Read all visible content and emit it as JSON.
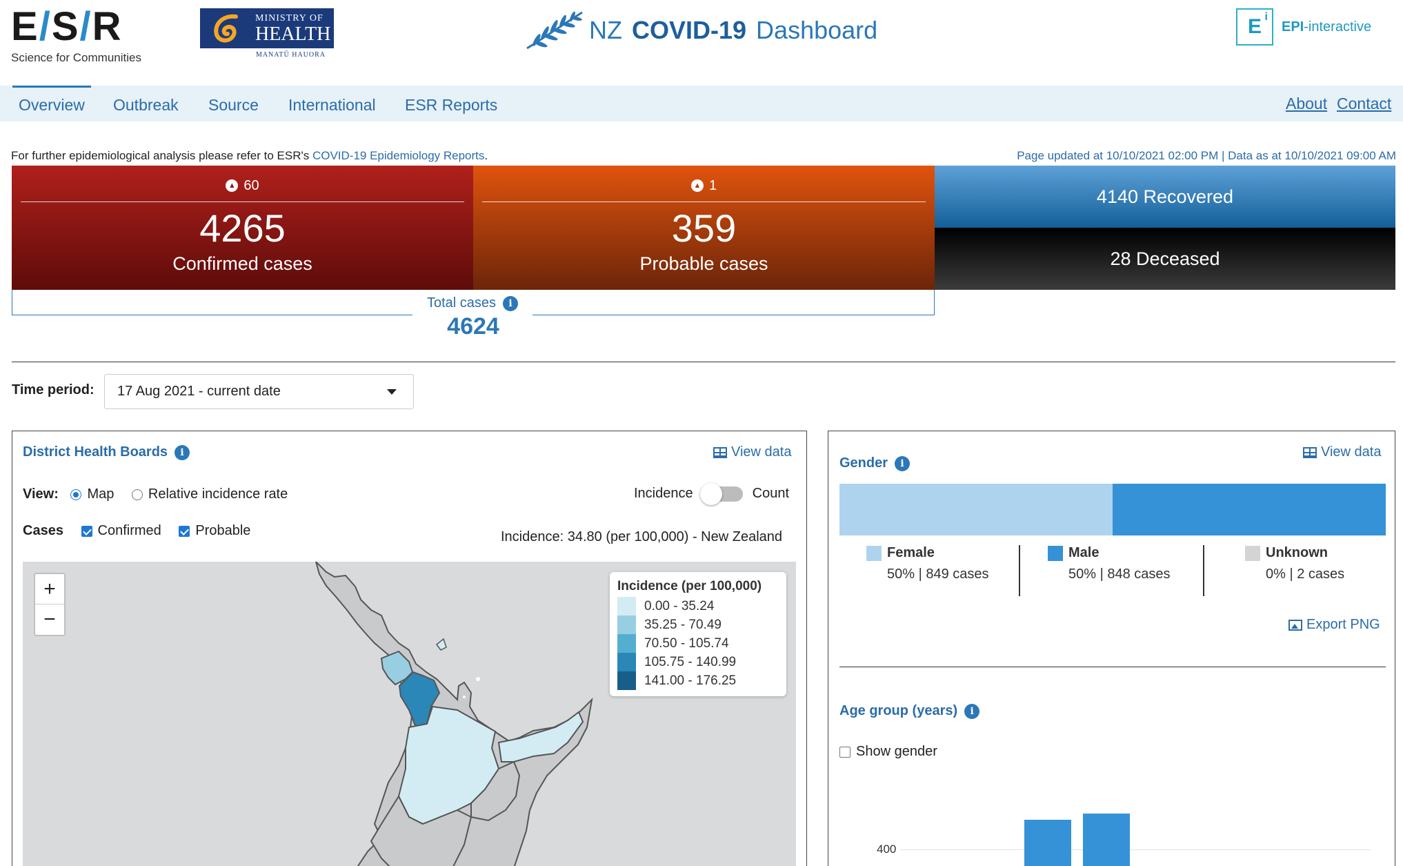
{
  "header": {
    "esr_logo_text": "E/S/R",
    "esr_tagline": "Science for Communities",
    "moh_line1": "MINISTRY OF",
    "moh_line2": "HEALTH",
    "moh_line3": "MANATŪ HAUORA",
    "title_nz": "NZ",
    "title_covid": "COVID-19",
    "title_dashboard": "Dashboard",
    "epi_letter": "E",
    "epi_sup": "i",
    "epi_bold": "EPI",
    "epi_rest": "-interactive"
  },
  "nav": {
    "items": [
      {
        "label": "Overview",
        "active": true
      },
      {
        "label": "Outbreak",
        "active": false
      },
      {
        "label": "Source",
        "active": false
      },
      {
        "label": "International",
        "active": false
      },
      {
        "label": "ESR Reports",
        "active": false
      }
    ],
    "right": [
      {
        "label": "About"
      },
      {
        "label": "Contact"
      }
    ]
  },
  "info": {
    "prefix": "For further epidemiological analysis please refer to ESR's ",
    "link": "COVID-19 Epidemiology Reports",
    "suffix": ".",
    "updated": "Page updated at 10/10/2021 02:00 PM | Data as at 10/10/2021 09:00 AM"
  },
  "stats": {
    "confirmed": {
      "delta": "60",
      "value": "4265",
      "label": "Confirmed cases"
    },
    "probable": {
      "delta": "1",
      "value": "359",
      "label": "Probable cases"
    },
    "recovered": "4140 Recovered",
    "deceased": "28 Deceased",
    "total_label": "Total cases",
    "total_value": "4624"
  },
  "time_period": {
    "label": "Time period:",
    "value": "17 Aug 2021 - current date"
  },
  "dhb": {
    "title": "District Health Boards",
    "view_data": "View data",
    "view_label": "View:",
    "opt_map": "Map",
    "opt_rel": "Relative incidence rate",
    "toggle_left": "Incidence",
    "toggle_right": "Count",
    "cases_label": "Cases",
    "cb_confirmed": "Confirmed",
    "cb_probable": "Probable",
    "incidence_text": "Incidence: 34.80 (per 100,000) - New Zealand",
    "zoom_in": "+",
    "zoom_out": "−",
    "legend_title": "Incidence (per 100,000)",
    "legend": [
      {
        "label": "0.00 - 35.24",
        "color": "#d3ecf4"
      },
      {
        "label": "35.25 - 70.49",
        "color": "#97cee2"
      },
      {
        "label": "70.50 - 105.74",
        "color": "#55aed0"
      },
      {
        "label": "105.75 - 140.99",
        "color": "#2a87b8"
      },
      {
        "label": "141.00 - 176.25",
        "color": "#175f8a"
      }
    ]
  },
  "gender": {
    "title": "Gender",
    "view_data": "View data",
    "female": {
      "name": "Female",
      "value": "50% | 849 cases",
      "color": "#aed3ee",
      "share": 0.5
    },
    "male": {
      "name": "Male",
      "value": "50% | 848 cases",
      "color": "#3592d6",
      "share": 0.5
    },
    "unknown": {
      "name": "Unknown",
      "value": "0% | 2 cases",
      "color": "#d4d4d4",
      "share": 0.0
    },
    "export": "Export PNG"
  },
  "age": {
    "title": "Age group (years)",
    "show_gender": "Show gender",
    "tick_400": "400"
  }
}
